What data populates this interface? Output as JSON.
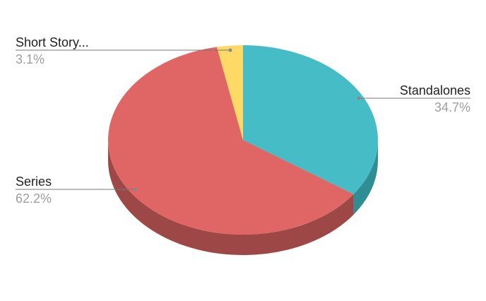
{
  "chart_data": {
    "type": "pie",
    "style": "3d",
    "start_angle": "top, clockwise",
    "slices": [
      {
        "label": "Standalones",
        "percent_label": "34.7%",
        "value": 34.7,
        "color": "#46BDC6",
        "side_color": "#2F8D94"
      },
      {
        "label": "Series",
        "percent_label": "62.2%",
        "value": 62.2,
        "color": "#E06666",
        "side_color": "#9E4747"
      },
      {
        "label": "Short Story...",
        "percent_label": "3.1%",
        "value": 3.1,
        "color": "#FFD966",
        "side_color": "#B89B45"
      }
    ],
    "legend": "leader-line labels"
  }
}
